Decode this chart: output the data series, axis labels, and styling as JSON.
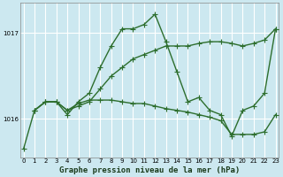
{
  "title": "Graphe pression niveau de la mer (hPa)",
  "background_color": "#cce8f0",
  "grid_color": "#ffffff",
  "line_color": "#2d6e2d",
  "xlim": [
    -0.3,
    23.3
  ],
  "ylim": [
    1015.55,
    1017.35
  ],
  "yticks": [
    1016,
    1017
  ],
  "xticks": [
    0,
    1,
    2,
    3,
    4,
    5,
    6,
    7,
    8,
    9,
    10,
    11,
    12,
    13,
    14,
    15,
    16,
    17,
    18,
    19,
    20,
    21,
    22,
    23
  ],
  "series": [
    {
      "x": [
        0,
        1,
        2,
        3,
        4,
        5,
        6,
        7,
        8,
        9,
        10,
        11,
        12,
        13,
        14,
        15,
        16,
        17,
        18,
        19,
        20,
        21,
        22,
        23
      ],
      "y": [
        1015.65,
        1016.1,
        1016.2,
        1016.2,
        1016.05,
        1016.2,
        1016.3,
        1016.6,
        1016.85,
        1017.05,
        1017.05,
        1017.1,
        1017.22,
        1016.9,
        1016.55,
        1016.2,
        1016.25,
        1016.1,
        1016.05,
        1015.8,
        1016.1,
        1016.15,
        1016.3,
        1017.05
      ]
    },
    {
      "x": [
        1,
        2,
        3,
        4,
        5,
        6,
        7,
        8,
        9,
        10,
        11,
        12,
        13,
        14,
        15,
        16,
        17,
        18,
        19,
        20,
        21,
        22,
        23
      ],
      "y": [
        1016.1,
        1016.2,
        1016.2,
        1016.1,
        1016.15,
        1016.2,
        1016.35,
        1016.5,
        1016.6,
        1016.7,
        1016.75,
        1016.8,
        1016.85,
        1016.85,
        1016.85,
        1016.88,
        1016.9,
        1016.9,
        1016.88,
        1016.85,
        1016.88,
        1016.92,
        1017.05
      ]
    },
    {
      "x": [
        1,
        2,
        3,
        4,
        5,
        6,
        7,
        8,
        9,
        10,
        11,
        12,
        13,
        14,
        15,
        16,
        17,
        18,
        19,
        20,
        21,
        22,
        23
      ],
      "y": [
        1016.1,
        1016.2,
        1016.2,
        1016.1,
        1016.18,
        1016.22,
        1016.22,
        1016.22,
        1016.2,
        1016.18,
        1016.18,
        1016.15,
        1016.12,
        1016.1,
        1016.08,
        1016.05,
        1016.02,
        1015.98,
        1015.82,
        1015.82,
        1015.82,
        1015.85,
        1016.05
      ]
    }
  ],
  "marker": "+",
  "markersize": 4,
  "linewidth": 1.0,
  "title_fontsize": 6.5,
  "tick_fontsize": 5.0,
  "title_color": "#1a3a1a",
  "spine_color": "#888888"
}
